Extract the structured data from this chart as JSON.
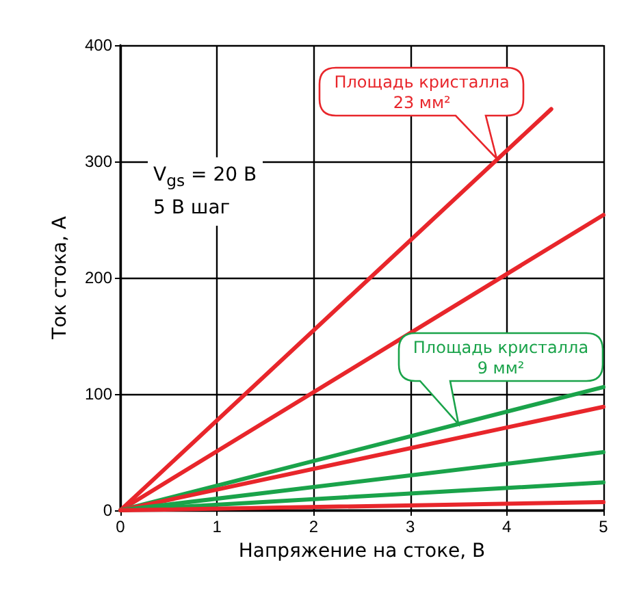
{
  "chart_data": {
    "type": "line",
    "xlabel": "Напряжение на стоке, В",
    "ylabel": "Ток стока, А",
    "xlim": [
      0,
      5
    ],
    "xticks": [
      0,
      1,
      2,
      3,
      4,
      5
    ],
    "ylim": [
      0,
      400
    ],
    "yticks": [
      0,
      100,
      200,
      300,
      400
    ],
    "grid": true,
    "marker": "none",
    "line_style": "solid",
    "series": [
      {
        "color": "#e8262b",
        "x": [
          0,
          4.46
        ],
        "values": [
          0,
          345
        ]
      },
      {
        "color": "#e8262b",
        "x": [
          0,
          5
        ],
        "values": [
          0,
          254
        ]
      },
      {
        "color": "#1aa34a",
        "x": [
          0,
          5
        ],
        "values": [
          0,
          106
        ]
      },
      {
        "color": "#e8262b",
        "x": [
          0,
          5
        ],
        "values": [
          0,
          89
        ]
      },
      {
        "color": "#1aa34a",
        "x": [
          0,
          5
        ],
        "values": [
          0,
          50
        ]
      },
      {
        "color": "#1aa34a",
        "x": [
          0,
          5
        ],
        "values": [
          0,
          24
        ]
      },
      {
        "color": "#e8262b",
        "x": [
          0,
          5
        ],
        "values": [
          0,
          7
        ]
      }
    ],
    "annotations": [
      {
        "text": "Площадь кристалла\n23 мм²",
        "x": 3.9,
        "y": 302
      },
      {
        "text": "Площадь кристалла\n9 мм²",
        "x": 3.5,
        "y": 74
      },
      "V$_{gs}$ = 20 В",
      "5 В шаг"
    ]
  }
}
